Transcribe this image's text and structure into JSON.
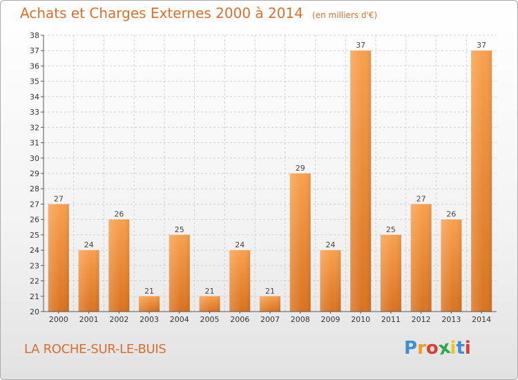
{
  "chart_data": {
    "type": "bar",
    "title": "Achats et Charges Externes 2000 à 2014",
    "subtitle": "(en milliers d'€)",
    "categories": [
      "2000",
      "2001",
      "2002",
      "2003",
      "2004",
      "2005",
      "2006",
      "2007",
      "2008",
      "2009",
      "2010",
      "2011",
      "2012",
      "2013",
      "2014"
    ],
    "values": [
      27,
      24,
      26,
      21,
      25,
      21,
      24,
      21,
      29,
      24,
      37,
      25,
      27,
      26,
      37
    ],
    "ylim": [
      20,
      38
    ],
    "yticks": [
      20,
      21,
      22,
      23,
      24,
      25,
      26,
      27,
      28,
      29,
      30,
      31,
      32,
      33,
      34,
      35,
      36,
      37,
      38
    ],
    "grid": true,
    "bar_color": "#f0913a",
    "grid_color": "#cfcfcf"
  },
  "footer": {
    "place": "LA ROCHE-SUR-LE-BUIS",
    "logo_letters": [
      "P",
      "r",
      "o",
      "x",
      "i",
      "t",
      "i"
    ],
    "logo_colors": [
      "#3a8fd6",
      "#f39a1f",
      "#e23b2e",
      "#2aa84a",
      "#f3c21f",
      "#3a8fd6",
      "#e23b2e"
    ]
  }
}
